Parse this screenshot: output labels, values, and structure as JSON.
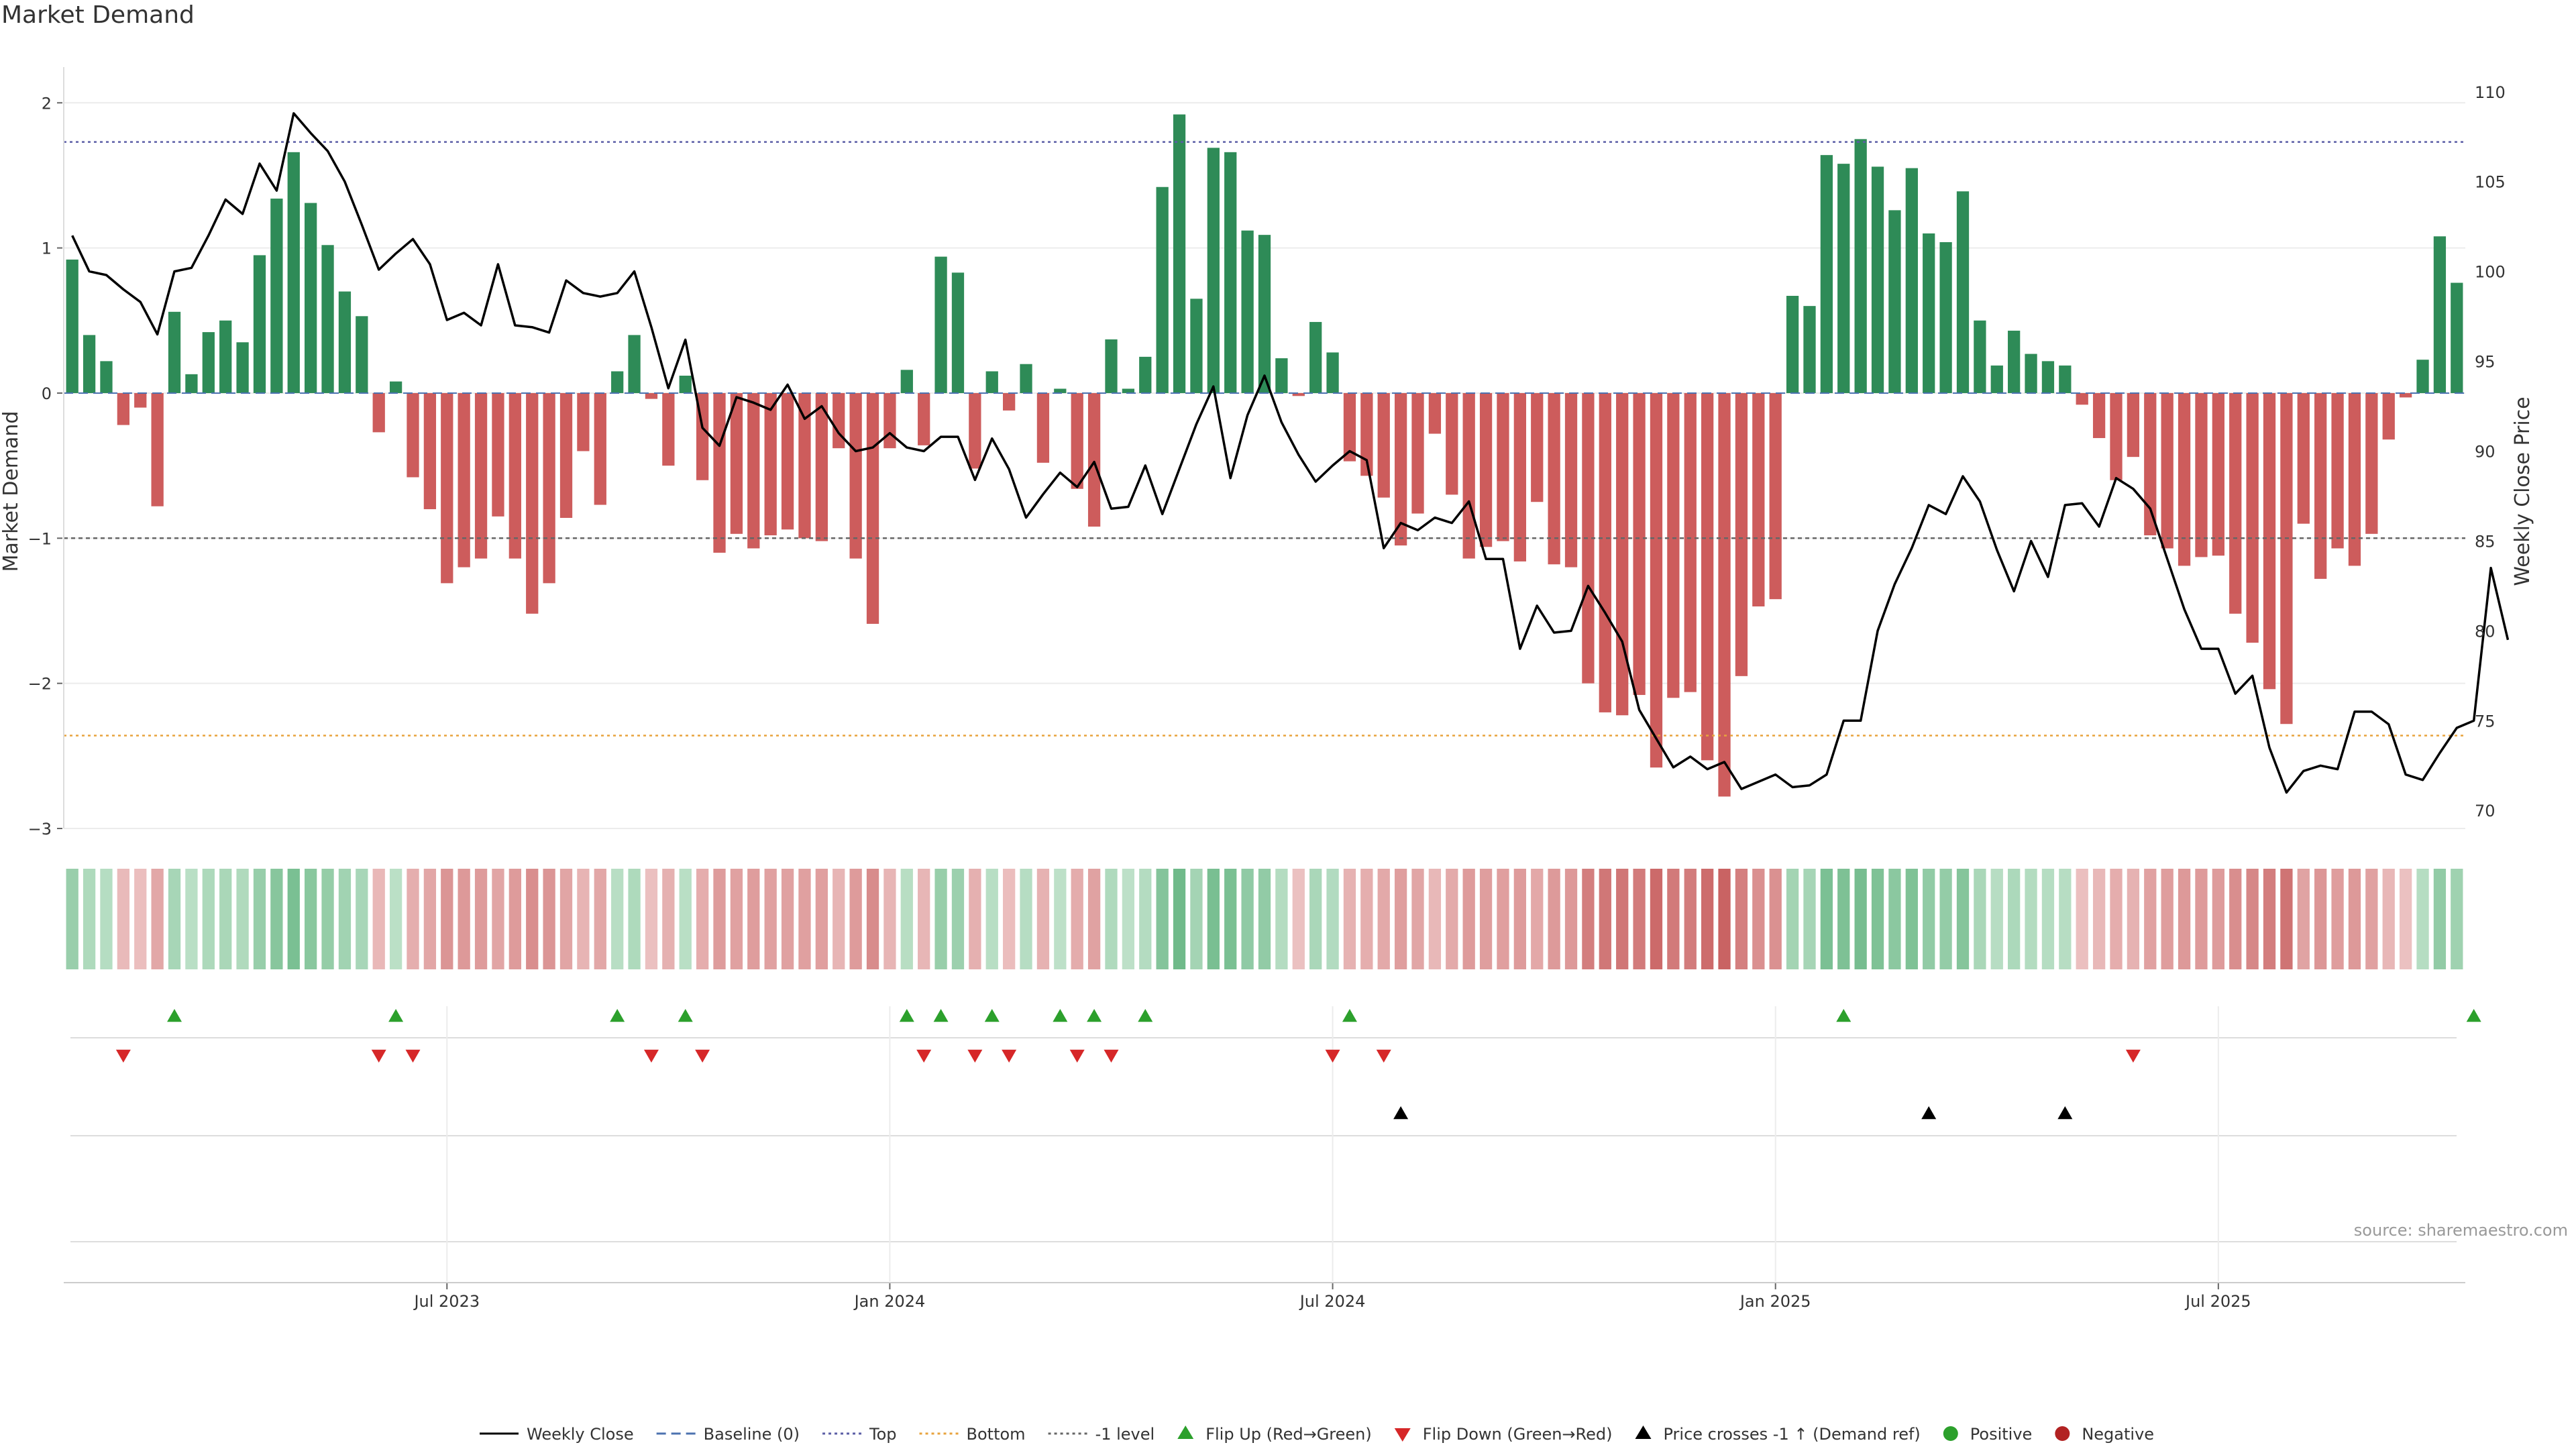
{
  "title": "Market Demand",
  "source": "source: sharemaestro.com",
  "chart_data": {
    "type": "bar",
    "title": "Market Demand",
    "ylabel_left": "Market Demand",
    "ylabel_right": "Weekly Close Price",
    "ylim_left": [
      -3,
      2.2
    ],
    "ylim_right": [
      69,
      111
    ],
    "yticks_left": [
      2,
      1,
      0,
      -1,
      -2,
      -3
    ],
    "ytick_labels_left": [
      "2",
      "1",
      "0",
      "−1",
      "−2",
      "−3"
    ],
    "yticks_right": [
      110,
      105,
      100,
      95,
      90,
      85,
      80,
      75,
      70
    ],
    "ytick_labels_right": [
      "110",
      "105",
      "100",
      "95",
      "90",
      "85",
      "80",
      "75",
      "70"
    ],
    "xtick_index": [
      22,
      48,
      74,
      100,
      126
    ],
    "xtick_labels": [
      "Jul 2023",
      "Jan 2024",
      "Jul 2024",
      "Jan 2025",
      "Jul 2025"
    ],
    "reference_lines": {
      "top": 1.73,
      "bottom": -2.36,
      "minus_one": -1,
      "baseline": 0
    },
    "colors": {
      "positive": "#2e8b57",
      "negative": "#cd5c5c",
      "price": "#000000",
      "top_line": "#5b5ea6",
      "bottom_line": "#e8a33d",
      "minus_one_line": "#666666",
      "flip_up": "#2ca02c",
      "flip_down": "#d62728",
      "cross": "#000000"
    },
    "demand": [
      0.92,
      0.4,
      0.22,
      -0.22,
      -0.1,
      -0.78,
      0.56,
      0.13,
      0.42,
      0.5,
      0.35,
      0.95,
      1.34,
      1.66,
      1.31,
      1.02,
      0.7,
      0.53,
      -0.27,
      0.08,
      -0.58,
      -0.8,
      -1.31,
      -1.2,
      -1.14,
      -0.85,
      -1.14,
      -1.52,
      -1.31,
      -0.86,
      -0.4,
      -0.77,
      0.15,
      0.4,
      -0.04,
      -0.5,
      0.12,
      -0.6,
      -1.1,
      -0.97,
      -1.07,
      -0.98,
      -0.94,
      -1.0,
      -1.02,
      -0.38,
      -1.14,
      -1.59,
      -0.38,
      0.16,
      -0.36,
      0.94,
      0.83,
      -0.52,
      0.15,
      -0.12,
      0.2,
      -0.48,
      0.03,
      -0.66,
      -0.92,
      0.37,
      0.03,
      0.25,
      1.42,
      1.92,
      0.65,
      1.69,
      1.66,
      1.12,
      1.09,
      0.24,
      -0.02,
      0.49,
      0.28,
      -0.47,
      -0.57,
      -0.72,
      -1.05,
      -0.83,
      -0.28,
      -0.7,
      -1.14,
      -1.06,
      -1.02,
      -1.16,
      -0.75,
      -1.18,
      -1.2,
      -2.0,
      -2.2,
      -2.22,
      -2.08,
      -2.58,
      -2.1,
      -2.06,
      -2.53,
      -2.78,
      -1.95,
      -1.47,
      -1.42,
      0.67,
      0.6,
      1.64,
      1.58,
      1.75,
      1.56,
      1.26,
      1.55,
      1.1,
      1.04,
      1.39,
      0.5,
      0.19,
      0.43,
      0.27,
      0.22,
      0.19,
      -0.08,
      -0.31,
      -0.6,
      -0.44,
      -0.98,
      -1.07,
      -1.19,
      -1.13,
      -1.12,
      -1.52,
      -1.72,
      -2.04,
      -2.28,
      -0.9,
      -1.28,
      -1.07,
      -1.19,
      -0.97,
      -0.32,
      -0.03,
      0.23,
      1.08,
      0.76
    ],
    "price": [
      102.0,
      100.0,
      99.8,
      99.0,
      98.3,
      96.5,
      100.0,
      100.2,
      102.0,
      104.0,
      103.2,
      106.0,
      104.5,
      108.8,
      107.7,
      106.7,
      105.0,
      102.6,
      100.1,
      101.0,
      101.8,
      100.4,
      97.3,
      97.7,
      97.0,
      100.4,
      97.0,
      96.9,
      96.6,
      99.5,
      98.8,
      98.6,
      98.8,
      100.0,
      96.9,
      93.5,
      96.2,
      91.3,
      90.3,
      93.0,
      92.7,
      92.3,
      93.7,
      91.8,
      92.5,
      91.0,
      90.0,
      90.2,
      91.0,
      90.2,
      90.0,
      90.8,
      90.8,
      88.4,
      90.7,
      89.0,
      86.3,
      87.6,
      88.8,
      88.0,
      89.4,
      86.8,
      86.9,
      89.2,
      86.5,
      89.0,
      91.5,
      93.6,
      88.5,
      92.0,
      94.2,
      91.6,
      89.8,
      88.3,
      89.2,
      90.0,
      89.5,
      84.6,
      86.0,
      85.6,
      86.3,
      86.0,
      87.2,
      84.0,
      84.0,
      79.0,
      81.4,
      79.9,
      80.0,
      82.5,
      81.0,
      79.4,
      75.6,
      74.0,
      72.4,
      73.0,
      72.3,
      72.7,
      71.2,
      71.6,
      72.0,
      71.3,
      71.4,
      72.0,
      75.0,
      75.0,
      80.0,
      82.6,
      84.6,
      87.0,
      86.5,
      88.6,
      87.2,
      84.5,
      82.2,
      85.0,
      83.0,
      87.0,
      87.1,
      85.8,
      88.5,
      87.9,
      86.8,
      84.0,
      81.2,
      79.0,
      79.0,
      76.5,
      77.5,
      73.5,
      71.0,
      72.2,
      72.5,
      72.3,
      75.5,
      75.5,
      74.8,
      72.0,
      71.7,
      73.2,
      74.6,
      75.0,
      83.5,
      79.5
    ],
    "flip_up_index": [
      6,
      19,
      32,
      36,
      49,
      51,
      54,
      58,
      60,
      63,
      75,
      104,
      141
    ],
    "flip_down_index": [
      3,
      18,
      20,
      34,
      37,
      50,
      53,
      55,
      59,
      61,
      74,
      77,
      121
    ],
    "cross_up_index": [
      78,
      109,
      117
    ],
    "legend": [
      {
        "label": "Weekly Close",
        "kind": "line-solid",
        "color": "#000000"
      },
      {
        "label": "Baseline (0)",
        "kind": "line-dashed",
        "color": "#4c72b0"
      },
      {
        "label": "Top",
        "kind": "line-dotted",
        "color": "#5b5ea6"
      },
      {
        "label": "Bottom",
        "kind": "line-dotted",
        "color": "#e8a33d"
      },
      {
        "label": "-1 level",
        "kind": "line-dotted",
        "color": "#666666"
      },
      {
        "label": "Flip Up (Red→Green)",
        "kind": "tri-up",
        "color": "#2ca02c"
      },
      {
        "label": "Flip Down (Green→Red)",
        "kind": "tri-down",
        "color": "#d62728"
      },
      {
        "label": "Price crosses -1 ↑ (Demand ref)",
        "kind": "tri-up",
        "color": "#000000"
      },
      {
        "label": "Positive",
        "kind": "dot",
        "color": "#2ca02c"
      },
      {
        "label": "Negative",
        "kind": "dot",
        "color": "#b22222"
      }
    ]
  }
}
